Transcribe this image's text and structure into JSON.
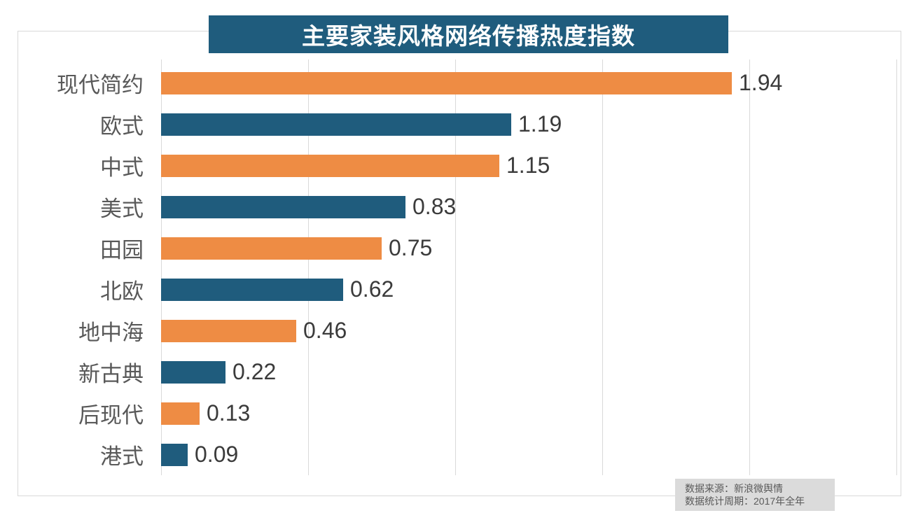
{
  "chart_data": {
    "type": "bar",
    "orientation": "horizontal",
    "title": "主要家装风格网络传播热度指数",
    "categories": [
      "现代简约",
      "欧式",
      "中式",
      "美式",
      "田园",
      "北欧",
      "地中海",
      "新古典",
      "后现代",
      "港式"
    ],
    "values": [
      1.94,
      1.19,
      1.15,
      0.83,
      0.75,
      0.62,
      0.46,
      0.22,
      0.13,
      0.09
    ],
    "value_labels": [
      "1.94",
      "1.19",
      "1.15",
      "0.83",
      "0.75",
      "0.62",
      "0.46",
      "0.22",
      "0.13",
      "0.09"
    ],
    "xlim": [
      0,
      2.5
    ],
    "gridline_step": 0.5,
    "grid": true,
    "legend": "none",
    "bar_colors_alternating": [
      "#EE8C44",
      "#1F5C7D"
    ]
  },
  "footer": {
    "source_line": "数据来源：新浪微舆情",
    "period_line": "数据统计周期：2017年全年"
  },
  "colors": {
    "orange_bar": "#EE8C44",
    "blue_bar": "#1F5C7D",
    "title_bg": "#1F5C7D",
    "title_text": "#FFFFFF",
    "gridline": "#D9D9D9",
    "frame_border": "#D9D9D9",
    "category_label": "#595959",
    "value_label": "#3B3B3B",
    "footer_bg": "#DBDBDB",
    "footer_text": "#595959"
  }
}
